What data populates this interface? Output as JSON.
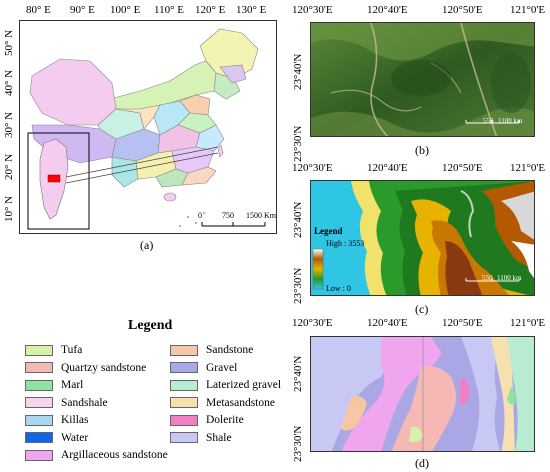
{
  "panel_a": {
    "lon_labels": [
      "80° E",
      "90° E",
      "100° E",
      "110° E",
      "120° E",
      "130° E"
    ],
    "lat_labels": [
      "50° N",
      "40° N",
      "30° N",
      "20° N",
      "10° N"
    ],
    "scale": {
      "zero": "0",
      "mid": "750",
      "end": "1500 Km"
    },
    "label": "(a)"
  },
  "panel_b": {
    "lon_labels": [
      "120°30'E",
      "120°40'E",
      "120°50'E",
      "121°0'E"
    ],
    "lat_labels": [
      "23°40'N",
      "23°30'N"
    ],
    "scale": {
      "mid": "550",
      "end": "1100 km"
    },
    "label": "(b)"
  },
  "panel_c": {
    "lon_labels": [
      "120°30'E",
      "120°40'E",
      "120°50'E",
      "121°0'E"
    ],
    "lat_labels": [
      "23°40'N",
      "23°30'N"
    ],
    "legend_title": "Legend",
    "high_label": "High : 3553",
    "low_label": "Low : 0",
    "scale": {
      "mid": "550",
      "end": "1100 km"
    },
    "label": "(c)"
  },
  "panel_d": {
    "lon_labels": [
      "120°30'E",
      "120°40'E",
      "120°50'E",
      "121°0'E"
    ],
    "lat_labels": [
      "23°40'N",
      "23°30'N"
    ],
    "label": "(d)"
  },
  "legend": {
    "title": "Legend",
    "left_items": [
      {
        "label": "Tufa",
        "color": "#d6f2a8"
      },
      {
        "label": "Quartzy sandstone",
        "color": "#f6b8b5"
      },
      {
        "label": "Marl",
        "color": "#8fe3a0"
      },
      {
        "label": "Sandshale",
        "color": "#f6d3ef"
      },
      {
        "label": "Killas",
        "color": "#a6d8f0"
      },
      {
        "label": "Water",
        "color": "#1464e6"
      },
      {
        "label": "Argillaceous sandstone",
        "color": "#f0a6ee"
      }
    ],
    "right_items": [
      {
        "label": "Sandstone",
        "color": "#f7c6a4"
      },
      {
        "label": "Gravel",
        "color": "#a9a7e6"
      },
      {
        "label": "Laterized gravel",
        "color": "#b8ecd2"
      },
      {
        "label": "Metasandstone",
        "color": "#f6e0b0"
      },
      {
        "label": "Dolerite",
        "color": "#f27fc4"
      },
      {
        "label": "Shale",
        "color": "#c8c8f4"
      }
    ]
  }
}
